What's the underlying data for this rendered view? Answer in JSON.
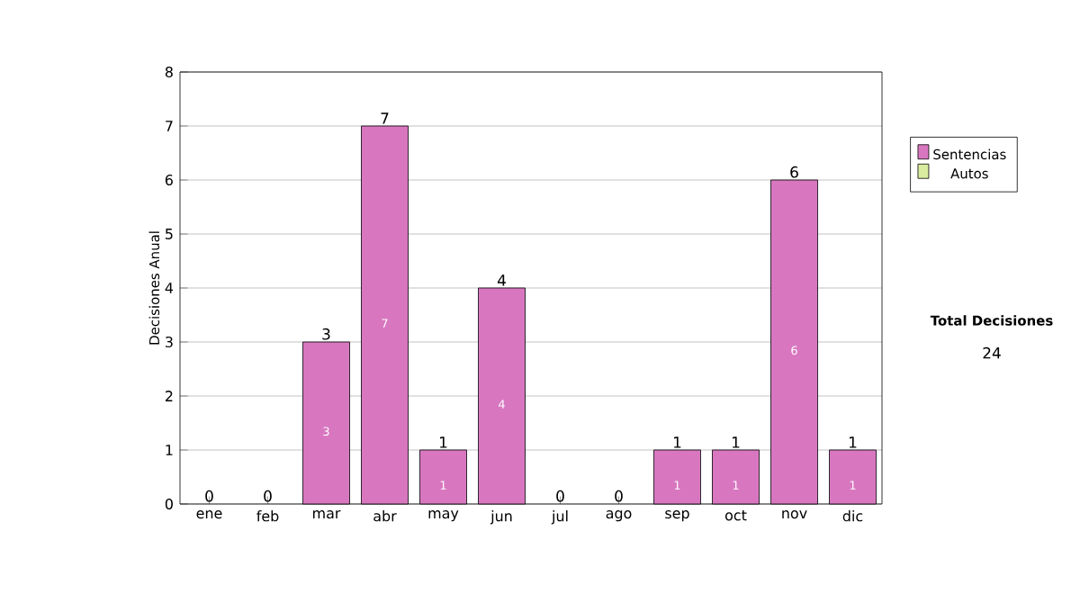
{
  "chart_data": {
    "type": "bar",
    "stacked": true,
    "ylabel": "Decisiones Anual",
    "categories": [
      "ene",
      "feb",
      "mar",
      "abr",
      "may",
      "jun",
      "jul",
      "ago",
      "sep",
      "oct",
      "nov",
      "dic"
    ],
    "series": [
      {
        "name": "Sentencias",
        "color": "#d877c0",
        "values": [
          0,
          0,
          3,
          7,
          1,
          4,
          0,
          0,
          1,
          1,
          6,
          1
        ],
        "value_labels": [
          null,
          null,
          "3",
          "7",
          "1",
          "4",
          null,
          null,
          "1",
          "1",
          "6",
          "1"
        ]
      },
      {
        "name": "Autos",
        "color": "#d9eca0",
        "values": [
          0,
          0,
          0,
          0,
          0,
          0,
          0,
          0,
          0,
          0,
          0,
          0
        ]
      }
    ],
    "ylim": [
      0,
      8
    ],
    "yticks": [
      0,
      1,
      2,
      3,
      4,
      5,
      6,
      7,
      8
    ],
    "grid": "y",
    "legend": "right",
    "totals": [
      "0",
      "0",
      "3",
      "7",
      "1",
      "4",
      "0",
      "0",
      "1",
      "1",
      "6",
      "1"
    ],
    "annotations": [
      "Total Decisiones",
      "24"
    ]
  }
}
